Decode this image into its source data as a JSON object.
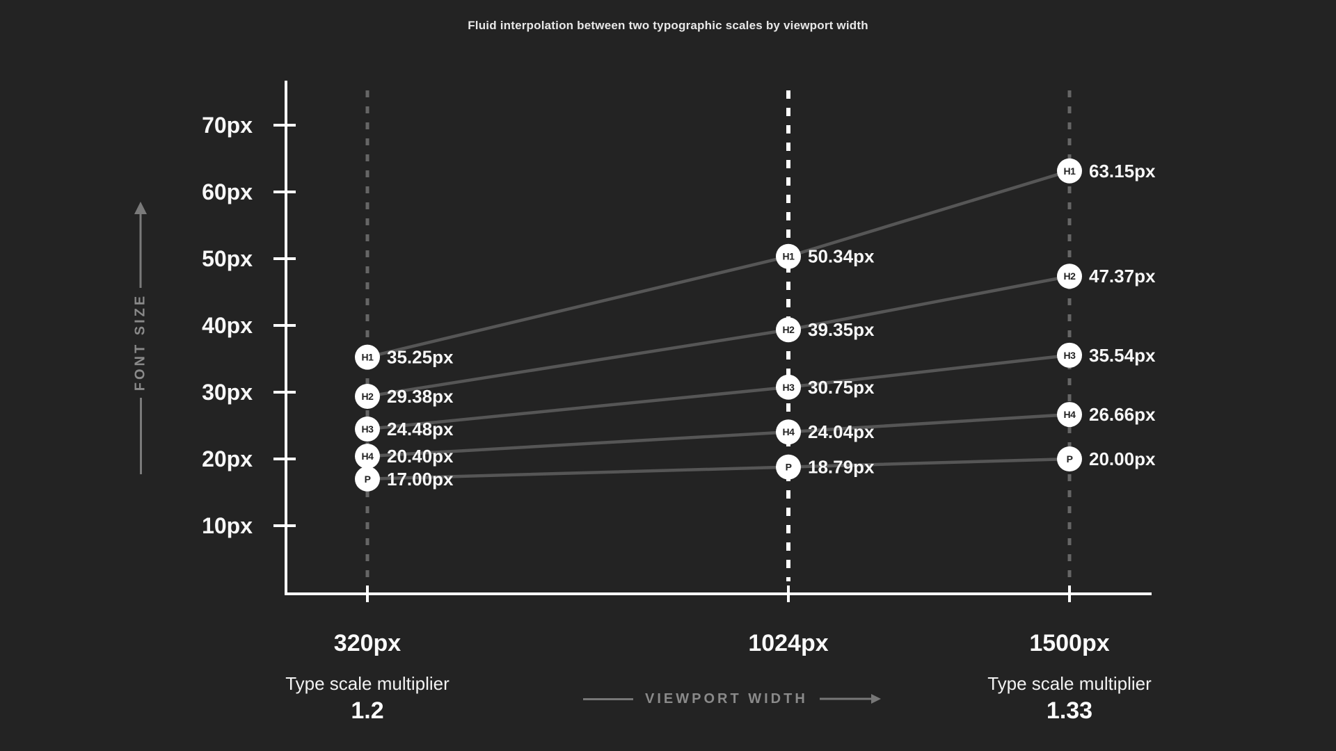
{
  "title": "Fluid interpolation between two typographic scales by viewport width",
  "colors": {
    "background": "#232323",
    "axis": "#ffffff",
    "tick_label": "#f7f7f7",
    "series_line": "#565656",
    "guide": "#666666",
    "guide_highlight": "#ffffff",
    "muted_text": "#8a8a8a",
    "point_fill": "#ffffff",
    "point_text": "#222222",
    "value_text": "#f7f7f7"
  },
  "y_axis_caption": "FONT SIZE",
  "x_axis_caption": "VIEWPORT WIDTH",
  "footers": {
    "left": {
      "caption": "Type scale multiplier",
      "value": "1.2",
      "under": "320px"
    },
    "right": {
      "caption": "Type scale multiplier",
      "value": "1.33",
      "under": "1500px"
    }
  },
  "chart_data": {
    "type": "line",
    "title": "Fluid interpolation between two typographic scales by viewport width",
    "xlabel": "VIEWPORT WIDTH",
    "ylabel": "FONT SIZE",
    "x_axis": {
      "categories": [
        "320px",
        "1024px",
        "1500px"
      ],
      "highlighted": "1024px"
    },
    "y_axis": {
      "tick_values": [
        70,
        60,
        50,
        40,
        30,
        20,
        10
      ],
      "tick_labels": [
        "70px",
        "60px",
        "50px",
        "40px",
        "30px",
        "20px",
        "10px"
      ],
      "range": [
        10,
        75
      ],
      "unit": "px"
    },
    "series": [
      {
        "name": "H1",
        "values": [
          35.25,
          50.34,
          63.15
        ],
        "labels": [
          "35.25px",
          "50.34px",
          "63.15px"
        ]
      },
      {
        "name": "H2",
        "values": [
          29.38,
          39.35,
          47.37
        ],
        "labels": [
          "29.38px",
          "39.35px",
          "47.37px"
        ]
      },
      {
        "name": "H3",
        "values": [
          24.48,
          30.75,
          35.54
        ],
        "labels": [
          "24.48px",
          "30.75px",
          "35.54px"
        ]
      },
      {
        "name": "H4",
        "values": [
          20.4,
          24.04,
          26.66
        ],
        "labels": [
          "20.40px",
          "24.04px",
          "26.66px"
        ]
      },
      {
        "name": "P",
        "values": [
          17.0,
          18.79,
          20.0
        ],
        "labels": [
          "17.00px",
          "18.79px",
          "20.00px"
        ]
      }
    ],
    "annotations": {
      "left_multiplier": {
        "caption": "Type scale multiplier",
        "value": "1.2"
      },
      "right_multiplier": {
        "caption": "Type scale multiplier",
        "value": "1.33"
      }
    },
    "legend": "none",
    "grid": "off"
  }
}
